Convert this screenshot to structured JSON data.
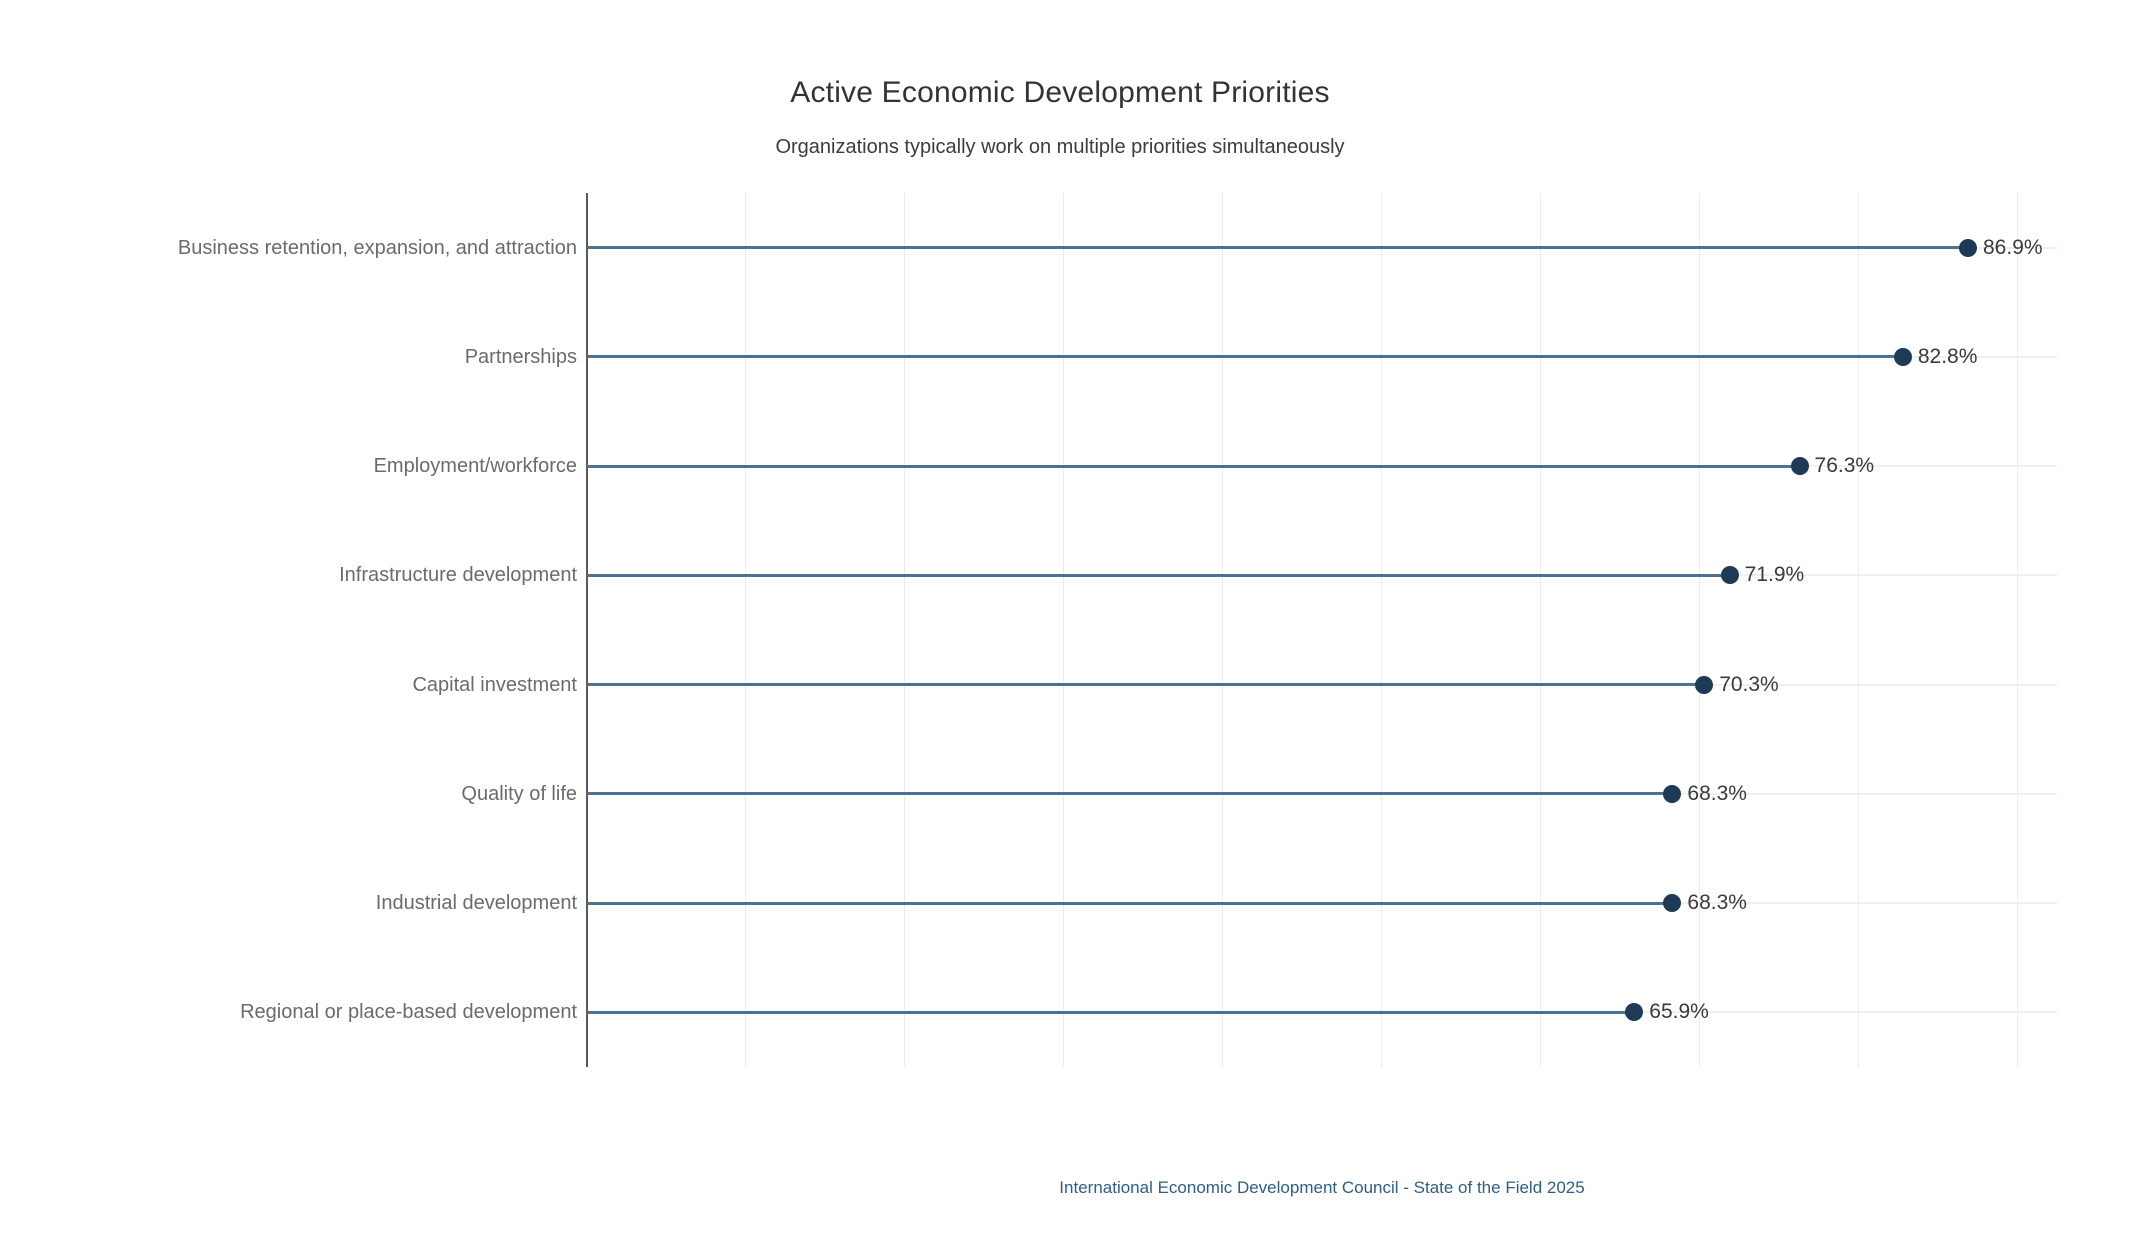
{
  "chart_data": {
    "type": "bar",
    "variant": "horizontal-lollipop",
    "title": "Active Economic Development Priorities",
    "subtitle": "Organizations typically work on multiple priorities simultaneously",
    "categories": [
      "Business retention, expansion, and attraction",
      "Partnerships",
      "Employment/workforce",
      "Infrastructure development",
      "Capital investment",
      "Quality of life",
      "Industrial development",
      "Regional or place-based development"
    ],
    "values": [
      86.9,
      82.8,
      76.3,
      71.9,
      70.3,
      68.3,
      68.3,
      65.9
    ],
    "value_labels": [
      "86.9%",
      "82.8%",
      "76.3%",
      "71.9%",
      "70.3%",
      "68.3%",
      "68.3%",
      "65.9%"
    ],
    "xlabel": "",
    "ylabel": "",
    "xlim": [
      0,
      92.5
    ],
    "grid": {
      "vertical_tick_step": 10,
      "vertical_tick_max": 90,
      "horizontal_line_per_category": true
    },
    "legend": null,
    "source_caption": "International Economic Development Council - State of the Field 2025"
  },
  "colors": {
    "dot": "#1e3a56",
    "stem": "#4e7191",
    "axis_line": "#595959",
    "gridline": "#ececec",
    "title_text": "#333333",
    "subtitle_text": "#3c3c3c",
    "category_text": "#6b6b6b",
    "value_text": "#3a3a3a",
    "source_text": "#2d5f86",
    "background": "#ffffff"
  }
}
